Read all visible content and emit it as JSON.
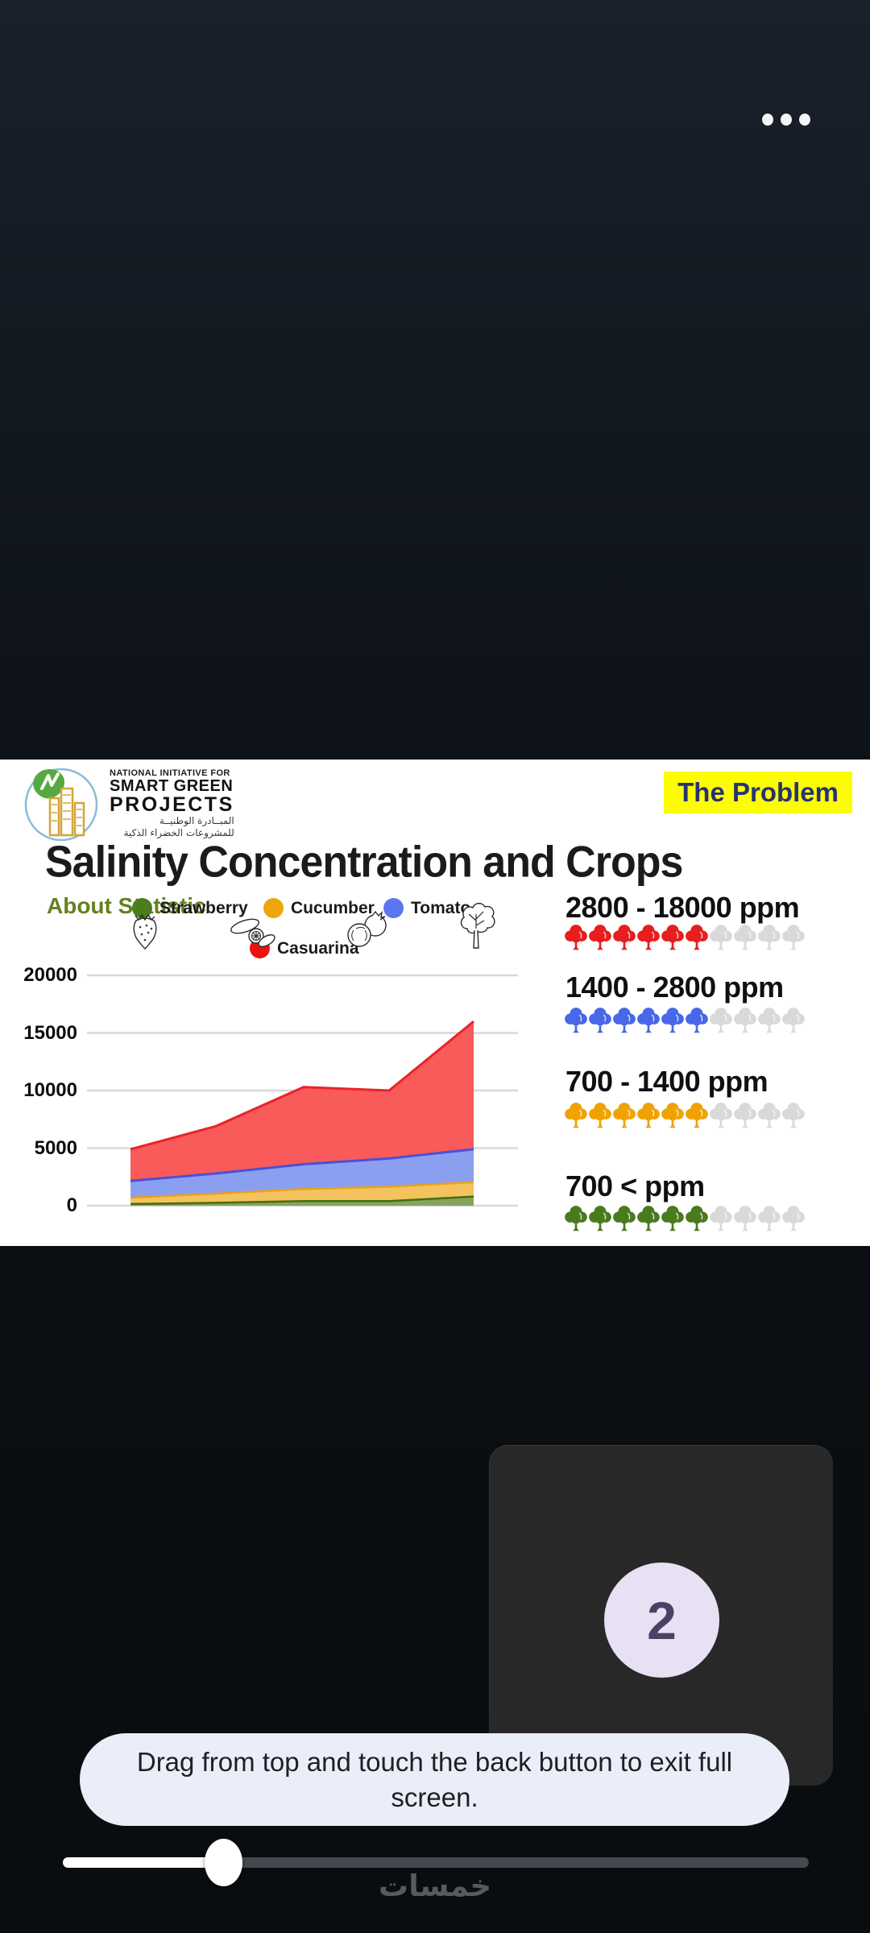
{
  "menu": {
    "icon": "three-dots-menu"
  },
  "slide": {
    "logo": {
      "line1": "NATIONAL INITIATIVE FOR",
      "line2": "SMART GREEN",
      "line3": "PROJECTS",
      "arabic1": "المبــادرة الوطنيــة",
      "arabic2": "للمشروعات الخضراء الذكية"
    },
    "badge": "The Problem",
    "title": "Salinity Concentration and Crops",
    "subtitle": "About Statistic",
    "legend": [
      {
        "label": "Strawberry",
        "color": "#4a7d1c"
      },
      {
        "label": "Cucumber",
        "color": "#eda70c"
      },
      {
        "label": "Tomato",
        "color": "#5b76ee"
      },
      {
        "label": "Casuarina",
        "color": "#ee1111"
      }
    ],
    "salinity_levels": [
      {
        "range": "2800 - 18000 ppm",
        "tree_color": "#e81d1d",
        "filled": 6,
        "total": 10
      },
      {
        "range": "1400 - 2800 ppm",
        "tree_color": "#4768e8",
        "filled": 6,
        "total": 10
      },
      {
        "range": "700 - 1400 ppm",
        "tree_color": "#f0a202",
        "filled": 6,
        "total": 10
      },
      {
        "range": "700 < ppm",
        "tree_color": "#4a7a1e",
        "filled": 6,
        "total": 10
      }
    ],
    "tree_empty_color": "#d9d9d9"
  },
  "chart_data": {
    "type": "area",
    "stacked": true,
    "x": [
      1,
      2,
      3,
      4,
      5
    ],
    "series": [
      {
        "name": "Strawberry",
        "values": [
          150,
          250,
          400,
          400,
          800
        ],
        "fill": "#87a35e",
        "stroke": "#466e0e"
      },
      {
        "name": "Cucumber",
        "values": [
          550,
          800,
          1050,
          1250,
          1250
        ],
        "fill": "#f4c25f",
        "stroke": "#e8a21a"
      },
      {
        "name": "Tomato",
        "values": [
          1450,
          1750,
          2150,
          2450,
          2850
        ],
        "fill": "#8b9ff0",
        "stroke": "#4b50d6"
      },
      {
        "name": "Casuarina",
        "values": [
          2750,
          4100,
          6700,
          5900,
          11100
        ],
        "fill": "#f95a5a",
        "stroke": "#e8242a"
      }
    ],
    "ylabel": "",
    "xlabel": "",
    "ylim": [
      0,
      20000
    ],
    "yticks": [
      0,
      5000,
      10000,
      15000,
      20000
    ],
    "grid": true,
    "legend_position": "top"
  },
  "page_indicator": "2",
  "toast": "Drag from top and touch the back button to exit full screen.",
  "slider": {
    "value_pct": 21
  },
  "watermark": "خمسات"
}
